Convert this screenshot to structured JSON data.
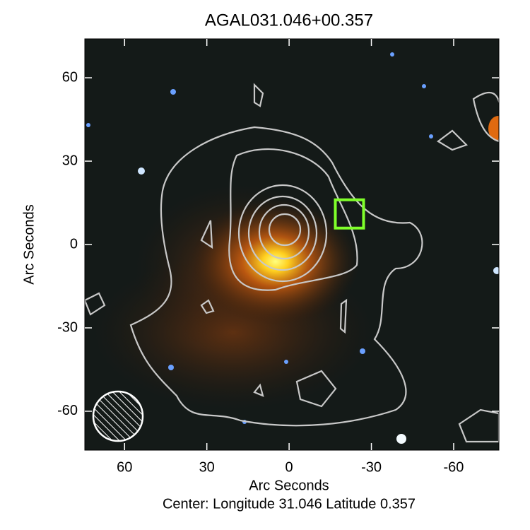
{
  "chart_data": {
    "type": "image",
    "title": "AGAL031.046+00.357",
    "xlabel": "Arc Seconds",
    "ylabel": "Arc Seconds",
    "footer": "Center:  Longitude 31.046 Latitude 0.357",
    "xlim": [
      74.5,
      -76.5
    ],
    "ylim": [
      -74,
      74
    ],
    "xticks": [
      60,
      30,
      0,
      -30,
      -60
    ],
    "yticks": [
      -60,
      -30,
      0,
      30,
      60
    ],
    "marker": {
      "x": -22,
      "y": 11,
      "color": "#7fff2a"
    }
  }
}
